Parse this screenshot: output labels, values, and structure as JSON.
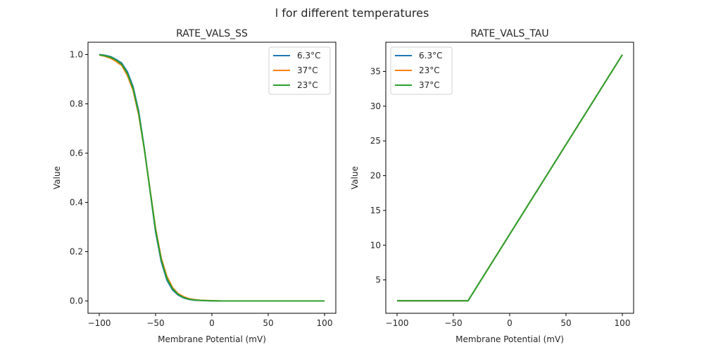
{
  "suptitle": "l for different temperatures",
  "chart_data": [
    {
      "type": "line",
      "title": "RATE_VALS_SS",
      "xlabel": "Membrane Potential (mV)",
      "ylabel": "Value",
      "xlim": [
        -110,
        110
      ],
      "ylim": [
        -0.05,
        1.05
      ],
      "xticks": [
        -100,
        -50,
        0,
        50,
        100
      ],
      "xtick_labels": [
        "−100",
        "−50",
        "0",
        "50",
        "100"
      ],
      "yticks": [
        0.0,
        0.2,
        0.4,
        0.6,
        0.8,
        1.0
      ],
      "ytick_labels": [
        "0.0",
        "0.2",
        "0.4",
        "0.6",
        "0.8",
        "1.0"
      ],
      "grid": false,
      "legend_position": "top-right",
      "series": [
        {
          "name": "6.3°C",
          "color": "#1f77b4",
          "x": [
            -100,
            -95,
            -90,
            -85,
            -80,
            -75,
            -70,
            -65,
            -60,
            -55,
            -50,
            -45,
            -40,
            -35,
            -30,
            -25,
            -20,
            -15,
            -10,
            -5,
            0,
            10,
            20,
            50,
            100
          ],
          "y": [
            1.0,
            0.997,
            0.992,
            0.98,
            0.965,
            0.93,
            0.87,
            0.77,
            0.62,
            0.45,
            0.28,
            0.16,
            0.085,
            0.045,
            0.024,
            0.012,
            0.006,
            0.003,
            0.002,
            0.001,
            0.0005,
            0.0,
            0.0,
            0.0,
            0.0
          ]
        },
        {
          "name": "37°C",
          "color": "#ff7f0e",
          "x": [
            -100,
            -95,
            -90,
            -85,
            -80,
            -75,
            -70,
            -65,
            -60,
            -55,
            -50,
            -45,
            -40,
            -35,
            -30,
            -25,
            -20,
            -15,
            -10,
            -5,
            0,
            10,
            20,
            50,
            100
          ],
          "y": [
            0.998,
            0.993,
            0.985,
            0.972,
            0.955,
            0.915,
            0.855,
            0.755,
            0.615,
            0.455,
            0.295,
            0.175,
            0.1,
            0.055,
            0.03,
            0.017,
            0.009,
            0.005,
            0.003,
            0.002,
            0.001,
            0.0,
            0.0,
            0.0,
            0.0
          ]
        },
        {
          "name": "23°C",
          "color": "#2ca02c",
          "x": [
            -100,
            -95,
            -90,
            -85,
            -80,
            -75,
            -70,
            -65,
            -60,
            -55,
            -50,
            -45,
            -40,
            -35,
            -30,
            -25,
            -20,
            -15,
            -10,
            -5,
            0,
            10,
            20,
            50,
            100
          ],
          "y": [
            0.999,
            0.995,
            0.989,
            0.977,
            0.96,
            0.923,
            0.862,
            0.762,
            0.617,
            0.452,
            0.288,
            0.168,
            0.092,
            0.05,
            0.027,
            0.014,
            0.007,
            0.004,
            0.0025,
            0.0015,
            0.0008,
            0.0,
            0.0,
            0.0,
            0.0
          ]
        }
      ]
    },
    {
      "type": "line",
      "title": "RATE_VALS_TAU",
      "xlabel": "Membrane Potential (mV)",
      "ylabel": "Value",
      "xlim": [
        -110,
        110
      ],
      "ylim": [
        0.2,
        39.2
      ],
      "xticks": [
        -100,
        -50,
        0,
        50,
        100
      ],
      "xtick_labels": [
        "−100",
        "−50",
        "0",
        "50",
        "100"
      ],
      "yticks": [
        5,
        10,
        15,
        20,
        25,
        30,
        35
      ],
      "ytick_labels": [
        "5",
        "10",
        "15",
        "20",
        "25",
        "30",
        "35"
      ],
      "grid": false,
      "legend_position": "top-left",
      "series": [
        {
          "name": "6.3°C",
          "color": "#1f77b4",
          "x": [
            -100,
            -37,
            100
          ],
          "y": [
            2.0,
            2.0,
            37.4
          ]
        },
        {
          "name": "23°C",
          "color": "#ff7f0e",
          "x": [
            -100,
            -37,
            100
          ],
          "y": [
            2.0,
            2.0,
            37.4
          ]
        },
        {
          "name": "37°C",
          "color": "#2ca02c",
          "x": [
            -100,
            -37,
            100
          ],
          "y": [
            2.0,
            2.0,
            37.4
          ]
        }
      ]
    }
  ]
}
